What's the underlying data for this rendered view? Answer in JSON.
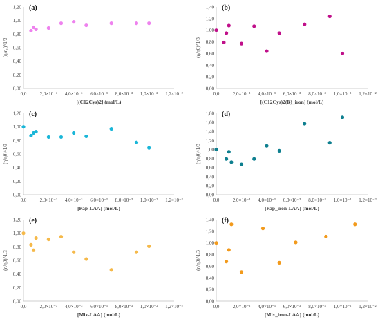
{
  "chart_data": [
    {
      "type": "scatter",
      "panel_label": "(a)",
      "xlabel": "[(C12Cys)2] (mol/L)",
      "ylabel": "(η/η₀)^1/3",
      "x_ticks": [
        "0,0",
        "2,0×10⁻³",
        "4,0×10⁻³",
        "6,0×10⁻³",
        "8,0×10⁻³",
        "1,0×10⁻²",
        "1,2×10⁻²"
      ],
      "y_ticks": [
        "0,00",
        "0,20",
        "0,40",
        "0,60",
        "0,80",
        "1,00",
        "1,20"
      ],
      "xlim": [
        0,
        0.012
      ],
      "ylim": [
        0,
        1.2
      ],
      "color": "#ee82ee",
      "x": [
        0.0006,
        0.0008,
        0.001,
        0.002,
        0.003,
        0.004,
        0.005,
        0.007,
        0.009,
        0.01
      ],
      "y": [
        0.85,
        0.9,
        0.87,
        0.89,
        0.96,
        0.98,
        0.93,
        0.96,
        0.96,
        0.96
      ]
    },
    {
      "type": "scatter",
      "panel_label": "(b)",
      "xlabel": "[(C12Cys)2(B)_iron] (mol/L)",
      "ylabel": "(η/η0)^1/3",
      "x_ticks": [
        "0,0",
        "2,0×10⁻³",
        "4,0×10⁻³",
        "6,0×10⁻³",
        "8,0×10⁻³",
        "1,0×10⁻²",
        "1,2×10⁻²"
      ],
      "y_ticks": [
        "0,00",
        "0,20",
        "0,40",
        "0,60",
        "0,80",
        "1,00",
        "1,20",
        "1,40"
      ],
      "xlim": [
        0,
        0.012
      ],
      "ylim": [
        0,
        1.4
      ],
      "color": "#c0108a",
      "x": [
        0.0,
        0.0006,
        0.0008,
        0.001,
        0.002,
        0.003,
        0.004,
        0.005,
        0.007,
        0.009,
        0.01
      ],
      "y": [
        1.0,
        0.79,
        0.95,
        1.08,
        0.77,
        1.07,
        0.64,
        0.95,
        1.1,
        1.24,
        0.6
      ]
    },
    {
      "type": "scatter",
      "panel_label": "(c)",
      "xlabel": "[Pap-LAA] (mol/L)",
      "ylabel": "(η/η0)^1/3",
      "x_ticks": [
        "0,0",
        "2,0×10⁻³",
        "4,0×10⁻³",
        "6,0×10⁻³",
        "8,0×10⁻³",
        "1,0×10⁻²",
        "1,2×10⁻²"
      ],
      "y_ticks": [
        "0,00",
        "0,20",
        "0,40",
        "0,60",
        "0,80",
        "1,00",
        "1,20"
      ],
      "xlim": [
        0,
        0.012
      ],
      "ylim": [
        0,
        1.2
      ],
      "color": "#1ab6d8",
      "x": [
        0.0,
        0.0006,
        0.0008,
        0.001,
        0.002,
        0.003,
        0.004,
        0.005,
        0.007,
        0.009,
        0.01
      ],
      "y": [
        1.0,
        0.87,
        0.91,
        0.93,
        0.85,
        0.85,
        0.91,
        0.86,
        0.97,
        0.77,
        0.69
      ]
    },
    {
      "type": "scatter",
      "panel_label": "(d)",
      "xlabel": "[Pap_iron-LAA] (mol/L)",
      "ylabel": "(η/η0)^1/3",
      "x_ticks": [
        "0,0",
        "2,0×10⁻³",
        "4,0×10⁻³",
        "6,0×10⁻³",
        "8,0×10⁻³",
        "1,0×10⁻²",
        "1,2×10⁻²"
      ],
      "y_ticks": [
        "0,00",
        "0,20",
        "0,40",
        "0,60",
        "0,80",
        "1,00",
        "1,20",
        "1,40",
        "1,60",
        "1,80"
      ],
      "xlim": [
        0,
        0.012
      ],
      "ylim": [
        0,
        1.8
      ],
      "color": "#0e7f8f",
      "x": [
        0.0,
        0.0008,
        0.001,
        0.0012,
        0.002,
        0.003,
        0.004,
        0.005,
        0.007,
        0.009,
        0.01
      ],
      "y": [
        1.0,
        0.79,
        0.95,
        0.72,
        0.67,
        0.79,
        1.08,
        0.97,
        1.57,
        1.15,
        1.71
      ]
    },
    {
      "type": "scatter",
      "panel_label": "(e)",
      "xlabel": "[Mix-LAA] (mol/L)",
      "ylabel": "(η/η0)^1/3",
      "x_ticks": [
        "0,0",
        "2,0×10⁻³",
        "4,0×10⁻³",
        "6,0×10⁻³",
        "8,0×10⁻³",
        "1,0×10⁻²",
        "1,2×10⁻²"
      ],
      "y_ticks": [
        "0,00",
        "0,20",
        "0,40",
        "0,60",
        "0,80",
        "1,00",
        "1,20"
      ],
      "xlim": [
        0,
        0.012
      ],
      "ylim": [
        0,
        1.2
      ],
      "color": "#f5b94a",
      "x": [
        0.0,
        0.0006,
        0.0008,
        0.001,
        0.002,
        0.003,
        0.004,
        0.005,
        0.007,
        0.009,
        0.01
      ],
      "y": [
        1.0,
        0.83,
        0.75,
        0.93,
        0.91,
        0.95,
        0.72,
        0.62,
        0.46,
        0.72,
        0.81
      ]
    },
    {
      "type": "scatter",
      "panel_label": "(f)",
      "xlabel": "[Mix_iron-LAA] (mol/L)",
      "ylabel": "(η/η0)^1/3",
      "x_ticks": [
        "0,0",
        "2,0×10⁻³",
        "4,0×10⁻³",
        "6,0×10⁻³",
        "8,0×10⁻³",
        "1,0×10⁻²",
        "1,2×10⁻²"
      ],
      "y_ticks": [
        "0,00",
        "0,20",
        "0,40",
        "0,60",
        "0,80",
        "1,00",
        "1,20",
        "1,40"
      ],
      "xlim": [
        0,
        0.012
      ],
      "ylim": [
        0,
        1.4
      ],
      "color": "#f29a1c",
      "x": [
        0.0,
        0.0008,
        0.001,
        0.0012,
        0.002,
        0.0037,
        0.005,
        0.0063,
        0.0087,
        0.011
      ],
      "y": [
        1.0,
        0.68,
        0.88,
        1.32,
        0.5,
        1.25,
        0.66,
        1.01,
        1.11,
        1.32
      ]
    }
  ]
}
